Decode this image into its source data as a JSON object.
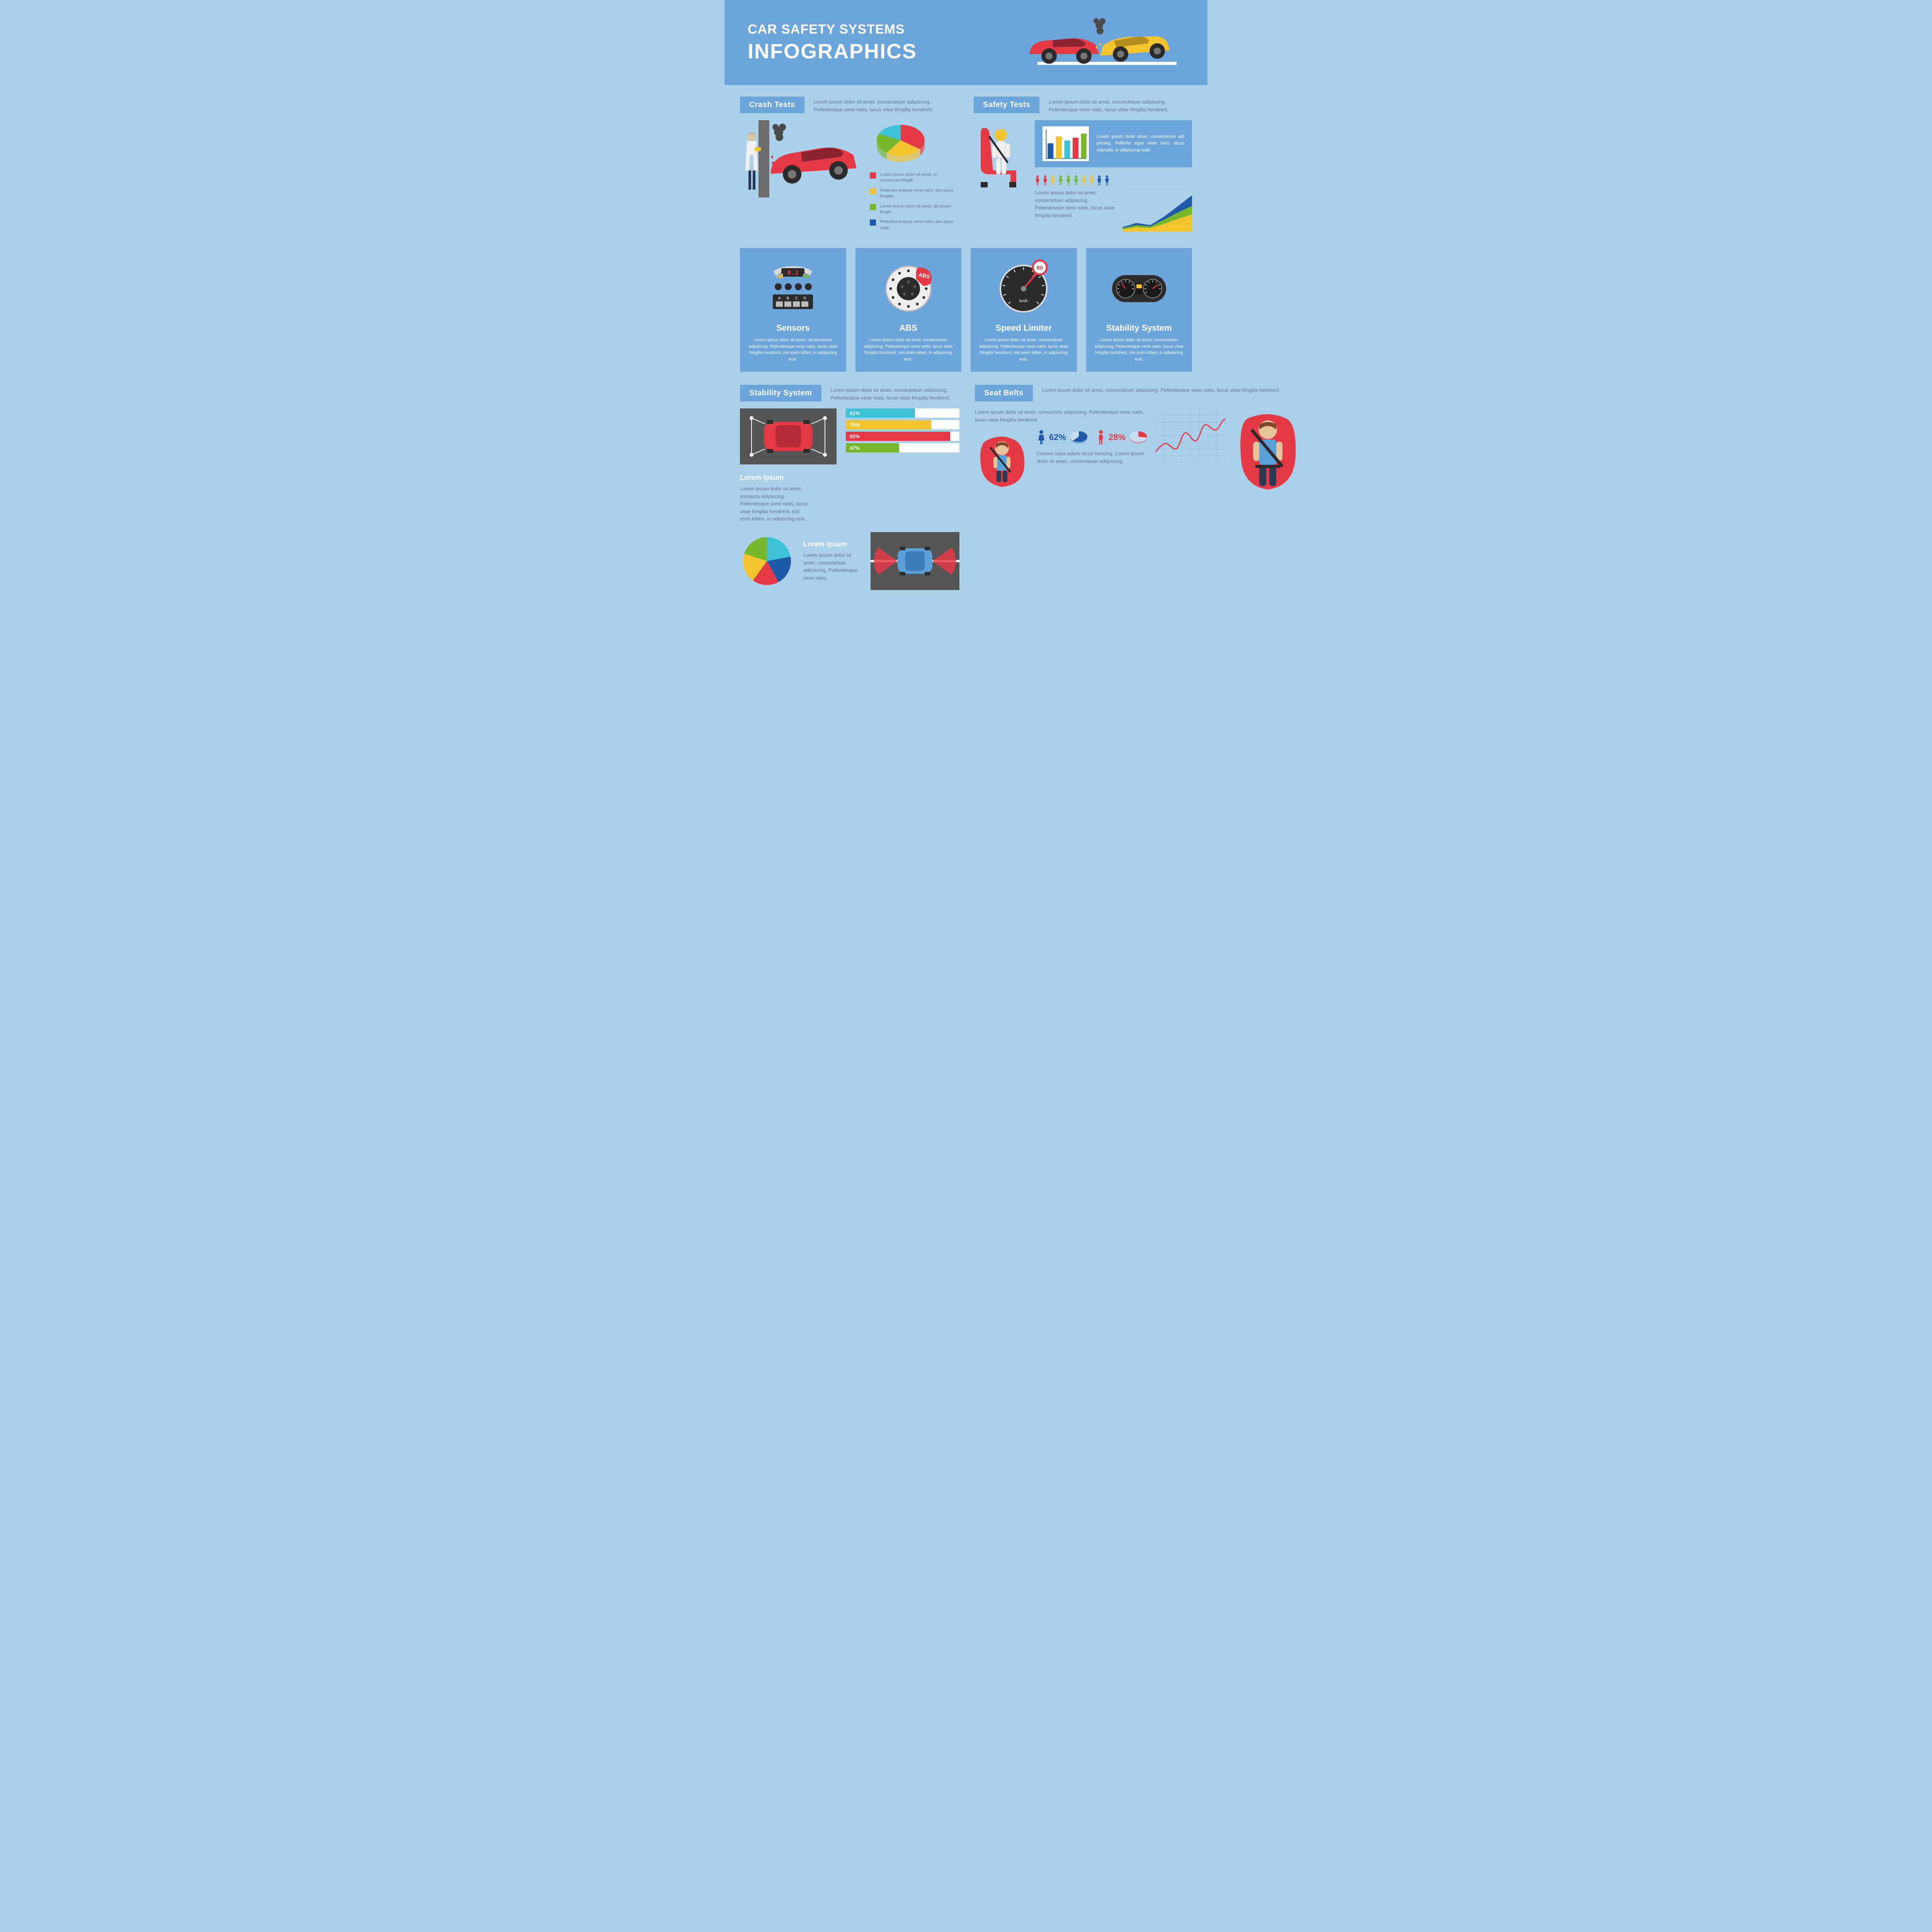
{
  "header": {
    "line1": "CAR SAFETY SYSTEMS",
    "line2": "INFOGRAPHICS",
    "bg_color": "#6ba5dc",
    "text_color": "#ffffff",
    "car_colors": {
      "left": "#e63946",
      "right": "#f4c430"
    }
  },
  "palette": {
    "page_bg": "#abd0ea",
    "panel_bg": "#6ba5dc",
    "text_muted": "#5a7a96",
    "red": "#e63946",
    "yellow": "#f4c430",
    "green": "#76b82a",
    "blue": "#1e5aa8",
    "cyan": "#3cc1d6",
    "white": "#ffffff",
    "dark": "#2b2b2b"
  },
  "crash_tests": {
    "label": "Crash Tests",
    "desc": "Lorem ipsum dolor sit amet, consectetuer adipiscing. Pellentesque vene natis, lacus vitae fringilla hendrerit.",
    "pie": {
      "type": "pie",
      "slices": [
        {
          "value": 35,
          "color": "#e63946"
        },
        {
          "value": 25,
          "color": "#f4c430"
        },
        {
          "value": 22,
          "color": "#76b82a"
        },
        {
          "value": 18,
          "color": "#3cc1d6"
        }
      ]
    },
    "legend": [
      {
        "color": "#e63946",
        "text": "Lorem ipsum dolor sit amet, in consectum fringill."
      },
      {
        "color": "#f4c430",
        "text": "Pellentes exquea vene natis, des lacus fringilla ."
      },
      {
        "color": "#76b82a",
        "text": "Lorem ipsum dolor sit amet, ap ipsum fringill ."
      },
      {
        "color": "#1e5aa8",
        "text": "Pellentes exquea vene natis, des lacus vitae."
      }
    ]
  },
  "safety_tests": {
    "label": "Safety Tests",
    "desc": "Lorem ipsum dolor sit amet, consectetuer adipiscing. Pellentesque vene natis, lacus vitae fringilla hendrerit.",
    "bar_chart": {
      "type": "bar",
      "values": [
        55,
        80,
        65,
        75,
        90
      ],
      "colors": [
        "#1e5aa8",
        "#f4c430",
        "#3cc1d6",
        "#e63946",
        "#76b82a"
      ],
      "ylim": [
        0,
        100
      ]
    },
    "bar_box_text": "Lorem ipsum dolor amet, consectetuer adi piscing. Pellente sque vene natis, lacus vitanulla, in adipiscing erati.",
    "people": {
      "colors": [
        "#e63946",
        "#e63946",
        "#f4c430",
        "#76b82a",
        "#76b82a",
        "#76b82a",
        "#f4c430",
        "#f4c430",
        "#1e5aa8",
        "#1e5aa8"
      ]
    },
    "lower_desc": "Lorem ipsum dolor sit amet, consectetuer adipiscing. Pellentesque vene natis, lacus vitae fringilla hendrerit.",
    "area_chart": {
      "type": "area",
      "layers": [
        {
          "color": "#1e5aa8",
          "points": [
            10,
            20,
            15,
            35,
            60,
            85
          ]
        },
        {
          "color": "#76b82a",
          "points": [
            8,
            15,
            12,
            28,
            45,
            60
          ]
        },
        {
          "color": "#f4c430",
          "points": [
            5,
            10,
            8,
            18,
            30,
            40
          ]
        }
      ],
      "xlim": [
        0,
        5
      ],
      "ylim": [
        0,
        100
      ]
    }
  },
  "feature_cards": [
    {
      "title": "Sensors",
      "desc": "Lorem ipsum dolor sit amet, consectetuer adipiscing. Pellentesque vene natis, lacus vitae fringilla hendrerit, nisi enim kitten, in adipiscing erat.",
      "icon": "sensors",
      "reading": "0.2",
      "buttons": "A B C D"
    },
    {
      "title": "ABS",
      "desc": "Lorem ipsum dolor sit amet, consectetuer adipiscing. Pellentesque vene natis, lacus vitae fringilla hendrerit, nisi enim kitten, in adipiscing erat.",
      "icon": "abs",
      "badge": "ABS"
    },
    {
      "title": "Speed Limiter",
      "desc": "Lorem ipsum dolor sit amet, consectetuer adipiscing. Pellentesque vene natis, lacus vitae fringilla hendrerit, nisi enim kitten, in adipiscing erat.",
      "icon": "speedometer",
      "value": "80",
      "unit": "km/h"
    },
    {
      "title": "Stability System",
      "desc": "Lorem ipsum dolor sit amet, consectetuer adipiscing. Pellentesque vene natis, lacus vitae fringilla hendrerit, nisi enim kitten, in adipiscing erat.",
      "icon": "dashboard"
    }
  ],
  "stability_detail": {
    "label": "Stability System",
    "desc": "Lorem ipsum dolor sit amet, consectetuer adipiscing. Pellentesque vene natis, lacus vitae fringilla hendrerit.",
    "pct_bars": [
      {
        "value": 61,
        "label": "61%",
        "color": "#3cc1d6"
      },
      {
        "value": 75,
        "label": "75%",
        "color": "#f4c430"
      },
      {
        "value": 92,
        "label": "92%",
        "color": "#e63946"
      },
      {
        "value": 47,
        "label": "47%",
        "color": "#76b82a"
      }
    ],
    "side_title": "Lorem Ipsum",
    "side_text": "Lorem ipsum dolor sit amet, consectu adipiscing. Pellentesque vene natis, lacus vitae fringilla hendrerit, nisi enim kitten, in adipiscing erat.",
    "pie": {
      "type": "pie",
      "slices": [
        {
          "value": 22,
          "color": "#3cc1d6"
        },
        {
          "value": 20,
          "color": "#1e5aa8"
        },
        {
          "value": 18,
          "color": "#e63946"
        },
        {
          "value": 20,
          "color": "#f4c430"
        },
        {
          "value": 20,
          "color": "#76b82a"
        }
      ]
    },
    "lower_title": "Lorem Ipsum",
    "lower_text": "Lorem ipsum dolor sit amet, consectetuer adipiscing. Pellentesque vene natis."
  },
  "seat_belts": {
    "label": "Seat Belts",
    "desc": "Lorem ipsum dolor sit amet, consectetuer adipiscing. Pellentesque vene natis, lacus vitae fringilla hendrerit.",
    "left_desc": "Lorem ipsum dolor sit amet, consectetu adipiscing. Pellentesque vene natis, lacus vitae fringilla hendrerit.",
    "line_chart": {
      "type": "line",
      "color": "#e63946",
      "points": [
        20,
        35,
        25,
        55,
        40,
        70,
        60,
        80
      ]
    },
    "gender_stats": [
      {
        "icon": "female",
        "color": "#1e5aa8",
        "value": 62,
        "label": "62%"
      },
      {
        "icon": "male",
        "color": "#e63946",
        "value": 28,
        "label": "28%"
      }
    ],
    "gender_text": "Consec tulya adipis lacus hencing. Lorem ipsum dolor sit amet, consectetuer adipiscing."
  }
}
